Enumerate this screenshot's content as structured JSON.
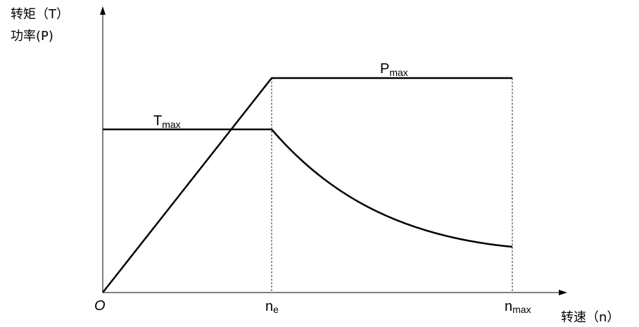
{
  "y_axis_label": [
    "转矩（T）",
    "功率(P)"
  ],
  "x_axis_label": "转速（n）",
  "origin": "O",
  "curves": {
    "power": {
      "main": "P",
      "sub": "max"
    },
    "torque": {
      "main": "T",
      "sub": "max"
    }
  },
  "x_marks": [
    {
      "main": "n",
      "sub": "e"
    },
    {
      "main": "n",
      "sub": "max"
    }
  ]
}
